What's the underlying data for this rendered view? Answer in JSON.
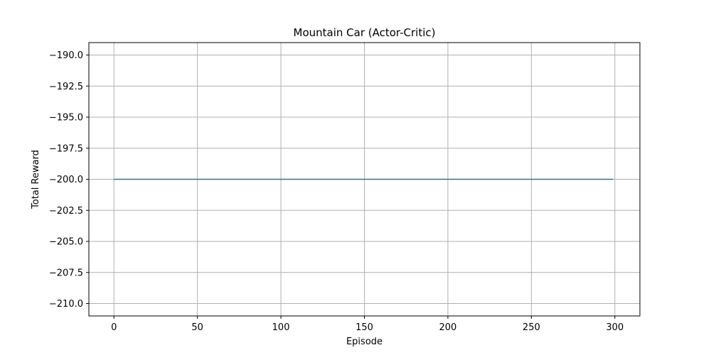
{
  "chart_data": {
    "type": "line",
    "title": "Mountain Car (Actor-Critic)",
    "xlabel": "Episode",
    "ylabel": "Total Reward",
    "xlim": [
      -15,
      315
    ],
    "ylim": [
      -211,
      -189
    ],
    "x_ticks": [
      0,
      50,
      100,
      150,
      200,
      250,
      300
    ],
    "x_tick_labels": [
      "0",
      "50",
      "100",
      "150",
      "200",
      "250",
      "300"
    ],
    "y_ticks": [
      -190,
      -192.5,
      -195,
      -197.5,
      -200,
      -202.5,
      -205,
      -207.5,
      -210
    ],
    "y_tick_labels": [
      "−190.0",
      "−192.5",
      "−195.0",
      "−197.5",
      "−200.0",
      "−202.5",
      "−205.0",
      "−207.5",
      "−210.0"
    ],
    "grid": true,
    "legend": "none",
    "series": [
      {
        "color": "#1f77b4",
        "x": [
          0,
          299
        ],
        "y": [
          -200,
          -200
        ]
      }
    ]
  }
}
